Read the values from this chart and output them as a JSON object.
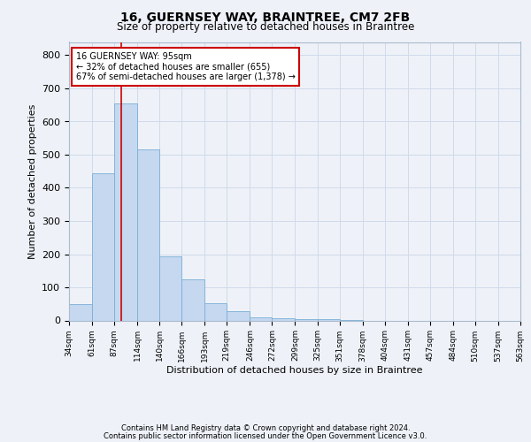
{
  "title": "16, GUERNSEY WAY, BRAINTREE, CM7 2FB",
  "subtitle": "Size of property relative to detached houses in Braintree",
  "xlabel": "Distribution of detached houses by size in Braintree",
  "ylabel": "Number of detached properties",
  "footnote1": "Contains HM Land Registry data © Crown copyright and database right 2024.",
  "footnote2": "Contains public sector information licensed under the Open Government Licence v3.0.",
  "bin_edges": [
    34,
    61,
    87,
    114,
    140,
    166,
    193,
    219,
    246,
    272,
    299,
    325,
    351,
    378,
    404,
    431,
    457,
    484,
    510,
    537,
    563
  ],
  "bar_heights": [
    50,
    443,
    655,
    515,
    193,
    125,
    52,
    27,
    10,
    7,
    5,
    3,
    2,
    0,
    0,
    0,
    0,
    0,
    0,
    0
  ],
  "bar_color": "#c5d8f0",
  "bar_edge_color": "#7aaed6",
  "grid_color": "#d0daea",
  "background_color": "#eef2f8",
  "red_line_x": 95,
  "annotation_title": "16 GUERNSEY WAY: 95sqm",
  "annotation_line1": "← 32% of detached houses are smaller (655)",
  "annotation_line2": "67% of semi-detached houses are larger (1,378) →",
  "annotation_box_color": "#ffffff",
  "annotation_box_edge": "#cc0000",
  "red_line_color": "#cc0000",
  "ylim": [
    0,
    840
  ],
  "xlim_left": 34,
  "xlim_right": 563,
  "yticks": [
    0,
    100,
    200,
    300,
    400,
    500,
    600,
    700,
    800
  ]
}
